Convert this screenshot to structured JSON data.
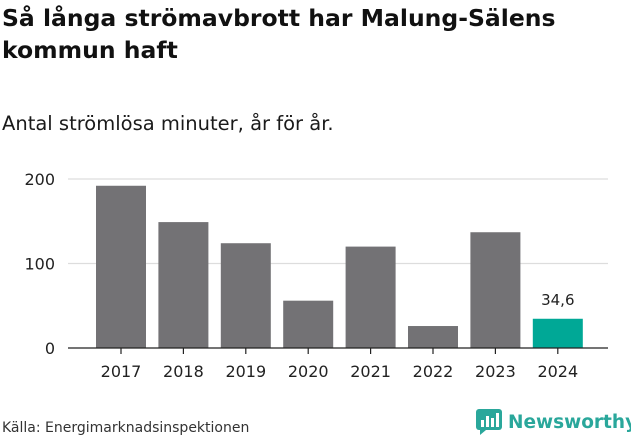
{
  "header": {
    "title": "Så långa strömavbrott har Malung-Sälens kommun haft",
    "subtitle": "Antal strömlösa minuter, år för år."
  },
  "footer": {
    "source": "Källa: Energimarknadsinspektionen",
    "brand": "Newsworthy"
  },
  "chart_data": {
    "type": "bar",
    "categories": [
      "2017",
      "2018",
      "2019",
      "2020",
      "2021",
      "2022",
      "2023",
      "2024"
    ],
    "values": [
      192,
      149,
      124,
      56,
      120,
      26,
      137,
      34.6
    ],
    "data_labels": [
      "",
      "",
      "",
      "",
      "",
      "",
      "",
      "34,6"
    ],
    "ylim": [
      0,
      200
    ],
    "yticks": [
      0,
      100,
      200
    ],
    "ytick_labels": [
      "0",
      "100",
      "200"
    ],
    "grid": true,
    "colors": {
      "bar": "#737275",
      "highlight": "#00a896",
      "grid": "#dddddd",
      "axis": "#222222"
    },
    "highlight_index": 7
  }
}
